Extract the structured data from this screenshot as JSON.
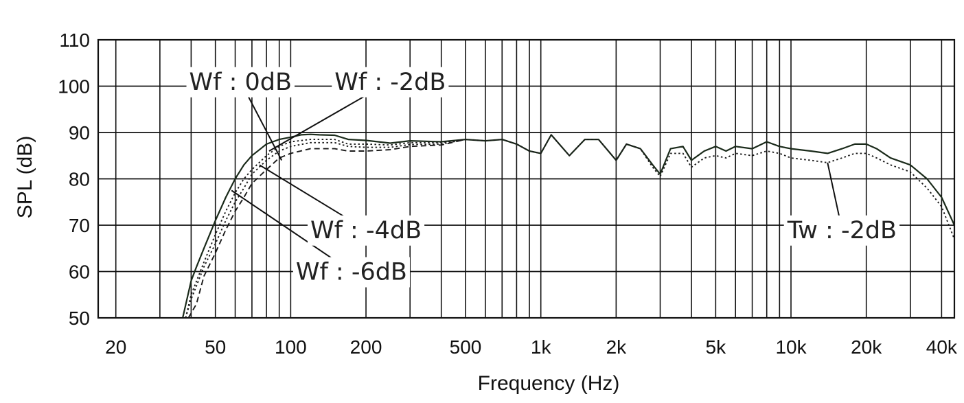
{
  "chart_data": {
    "type": "line",
    "title": "",
    "xlabel": "Frequency (Hz)",
    "ylabel": "SPL (dB)",
    "x_scale": "log",
    "xlim": [
      17,
      45000
    ],
    "ylim": [
      50,
      110
    ],
    "grid": true,
    "legend": "none",
    "y_ticks": [
      {
        "value": 50,
        "label": "50"
      },
      {
        "value": 60,
        "label": "60"
      },
      {
        "value": 70,
        "label": "70"
      },
      {
        "value": 80,
        "label": "80"
      },
      {
        "value": 90,
        "label": "90"
      },
      {
        "value": 100,
        "label": "100"
      },
      {
        "value": 110,
        "label": "110"
      }
    ],
    "x_ticks": [
      {
        "value": 20,
        "label": "20"
      },
      {
        "value": 50,
        "label": "50"
      },
      {
        "value": 100,
        "label": "100"
      },
      {
        "value": 200,
        "label": "200"
      },
      {
        "value": 500,
        "label": "500"
      },
      {
        "value": 1000,
        "label": "1k"
      },
      {
        "value": 2000,
        "label": "2k"
      },
      {
        "value": 5000,
        "label": "5k"
      },
      {
        "value": 10000,
        "label": "10k"
      },
      {
        "value": 20000,
        "label": "20k"
      },
      {
        "value": 40000,
        "label": "40k"
      }
    ],
    "x_grid": [
      20,
      30,
      40,
      50,
      60,
      70,
      80,
      90,
      100,
      200,
      300,
      400,
      500,
      600,
      700,
      800,
      900,
      1000,
      2000,
      3000,
      4000,
      5000,
      6000,
      7000,
      8000,
      9000,
      10000,
      20000,
      30000,
      40000
    ],
    "series": [
      {
        "style": "solid",
        "color": "#1a2a1a",
        "x": [
          37,
          40,
          42,
          45,
          50,
          55,
          60,
          65,
          70,
          80,
          90,
          100,
          110,
          120,
          130,
          150,
          170,
          200,
          250,
          300,
          400,
          500,
          600,
          700,
          800,
          900,
          1000,
          1100,
          1300,
          1500,
          1700,
          2000,
          2200,
          2500,
          2800,
          3000,
          3300,
          3700,
          4000,
          4500,
          5000,
          5500,
          6000,
          7000,
          8000,
          9000,
          10000,
          12000,
          14000,
          16000,
          18000,
          20000,
          22000,
          25000,
          30000,
          35000,
          40000,
          45000
        ],
        "y": [
          50,
          58,
          61,
          65,
          71,
          76,
          80,
          83,
          85,
          87.5,
          88.5,
          89,
          89.5,
          89.6,
          89.5,
          89.4,
          88.5,
          88.3,
          87.7,
          88.2,
          88,
          88.5,
          88.2,
          88.5,
          87.5,
          86,
          85.5,
          89.5,
          85,
          88.5,
          88.5,
          84,
          87.5,
          86.5,
          83,
          81,
          86.5,
          87,
          84,
          86,
          87,
          86,
          87,
          86.5,
          88,
          87,
          86.5,
          86,
          85.5,
          86.5,
          87.5,
          87.5,
          86.5,
          84.5,
          83,
          80,
          76,
          70
        ]
      },
      {
        "style": "dotted",
        "color": "#1a1a1a",
        "x": [
          38,
          40,
          45,
          50,
          55,
          60,
          65,
          70,
          80,
          90,
          100,
          120,
          150,
          170,
          200,
          250,
          300,
          400,
          500,
          600,
          700,
          800,
          900,
          1000,
          1100,
          1300,
          1500,
          1700,
          2000,
          2200,
          2500,
          2800,
          3000,
          3300,
          3700,
          4000,
          4500,
          5000,
          5500,
          6000,
          7000,
          8000,
          9000,
          10000,
          12000,
          14000,
          16000,
          18000,
          20000,
          22000,
          25000,
          30000,
          35000,
          40000,
          45000
        ],
        "y": [
          50,
          55,
          62,
          68,
          73,
          77,
          80,
          82,
          85,
          87,
          88,
          88.5,
          88.5,
          87.5,
          87.5,
          87.3,
          87.8,
          87.8,
          88.5,
          88.2,
          88.5,
          87.5,
          86,
          85.5,
          89.5,
          85,
          88.5,
          88.5,
          84,
          87.5,
          86.5,
          82.5,
          80.5,
          85.5,
          85.5,
          82.5,
          84.5,
          85,
          84.5,
          85.5,
          85,
          86,
          85.5,
          84.5,
          84,
          83.5,
          84.5,
          85.5,
          85.5,
          84.5,
          83,
          81.5,
          78,
          74,
          67
        ]
      },
      {
        "style": "dotted",
        "color": "#1a1a1a",
        "x": [
          38,
          40,
          45,
          50,
          55,
          60,
          65,
          70,
          80,
          90,
          100,
          120,
          150,
          170,
          200,
          250,
          300,
          400,
          500
        ],
        "y": [
          50,
          54,
          61,
          66,
          71,
          75,
          78,
          81,
          84,
          86,
          87,
          87.8,
          87.8,
          87,
          86.8,
          86.8,
          87.4,
          87.5,
          88.5
        ]
      },
      {
        "style": "dashed",
        "color": "#1a1a1a",
        "x": [
          39,
          42,
          45,
          50,
          55,
          60,
          65,
          70,
          80,
          90,
          100,
          120,
          150,
          170,
          200,
          250,
          300,
          400,
          500
        ],
        "y": [
          50,
          53,
          59,
          64,
          69,
          73,
          76,
          79,
          82,
          84.5,
          85.5,
          86.5,
          86.5,
          86,
          86,
          86.3,
          87,
          87.3,
          88.5
        ]
      }
    ],
    "annotations": [
      {
        "text": "Wf : 0dB",
        "x": 63,
        "y": 101,
        "target_x": 92,
        "target_y": 84
      },
      {
        "text": "Wf : -2dB",
        "x": 250,
        "y": 101,
        "target_x": 82,
        "target_y": 86
      },
      {
        "text": "Wf : -4dB",
        "x": 200,
        "y": 69,
        "target_x": 75,
        "target_y": 83
      },
      {
        "text": "Wf : -6dB",
        "x": 175,
        "y": 60,
        "target_x": 58,
        "target_y": 77.5
      },
      {
        "text": "Tw : -2dB",
        "x": 16000,
        "y": 69,
        "target_x": 14000,
        "target_y": 83.5
      }
    ]
  }
}
